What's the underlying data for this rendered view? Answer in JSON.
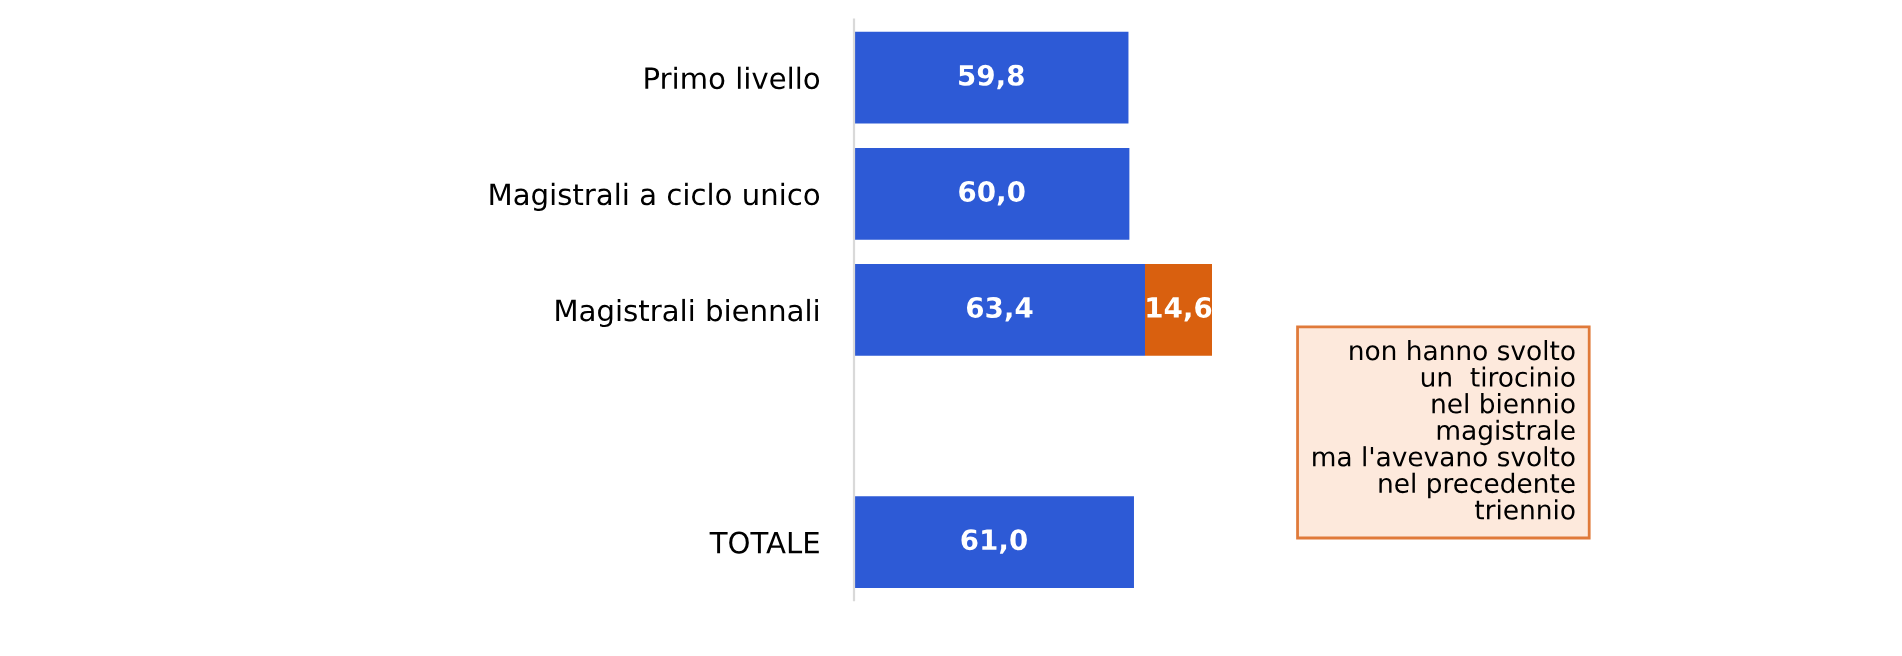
{
  "chart_data": {
    "type": "bar",
    "orientation": "horizontal",
    "stacked": true,
    "categories": [
      "Primo livello",
      "Magistrali a ciclo unico",
      "Magistrali biennali",
      null,
      "TOTALE"
    ],
    "series": [
      {
        "color": "#2d5ad6",
        "values": [
          59.8,
          60.0,
          63.4,
          null,
          61.0
        ],
        "value_labels": [
          "59,8",
          "60,0",
          "63,4",
          null,
          "61,0"
        ]
      },
      {
        "color": "#d9600f",
        "values": [
          null,
          null,
          14.6,
          null,
          null
        ],
        "value_labels": [
          null,
          null,
          "14,6",
          null,
          null
        ]
      }
    ],
    "tick_labels": "y",
    "grid": false,
    "legend": false,
    "annotations": [
      "non hanno svolto\nun  tirocinio\nnel biennio\nmagistrale\nma l'avevano svolto\nnel precedente\ntriennio"
    ]
  }
}
